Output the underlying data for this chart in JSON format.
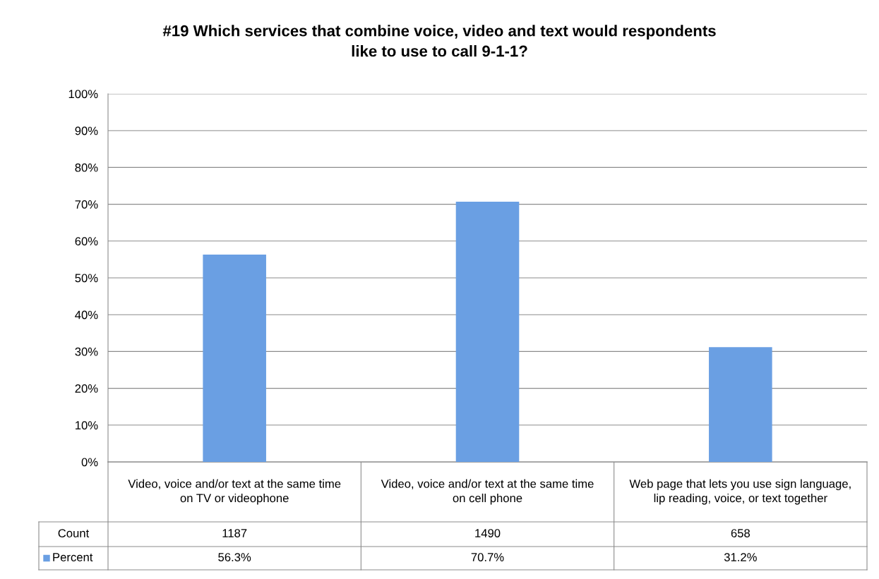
{
  "chart_data": {
    "type": "bar",
    "title": "#19 Which services that combine voice, video and text would respondents like to use to call 9-1-1?",
    "categories": [
      "Video, voice and/or text at the same time on TV or videophone",
      "Video, voice and/or text at the same time on cell phone",
      "Web page that lets you use sign language, lip reading, voice, or text together"
    ],
    "series": [
      {
        "name": "Percent",
        "color": "#6a9fe3",
        "values": [
          56.3,
          70.7,
          31.2
        ],
        "value_labels": [
          "56.3%",
          "70.7%",
          "31.2%"
        ]
      }
    ],
    "annotations": [
      "Count",
      "1187",
      "1490",
      "658"
    ],
    "ylim": [
      0,
      100
    ],
    "yticks": [
      {
        "value": 0,
        "label": "0%"
      },
      {
        "value": 10,
        "label": "10%"
      },
      {
        "value": 20,
        "label": "20%"
      },
      {
        "value": 30,
        "label": "30%"
      },
      {
        "value": 40,
        "label": "40%"
      },
      {
        "value": 50,
        "label": "50%"
      },
      {
        "value": 60,
        "label": "60%"
      },
      {
        "value": 70,
        "label": "70%"
      },
      {
        "value": 80,
        "label": "80%"
      },
      {
        "value": 90,
        "label": "90%"
      },
      {
        "value": 100,
        "label": "100%"
      }
    ],
    "grid": "y",
    "legend": "bottom"
  }
}
